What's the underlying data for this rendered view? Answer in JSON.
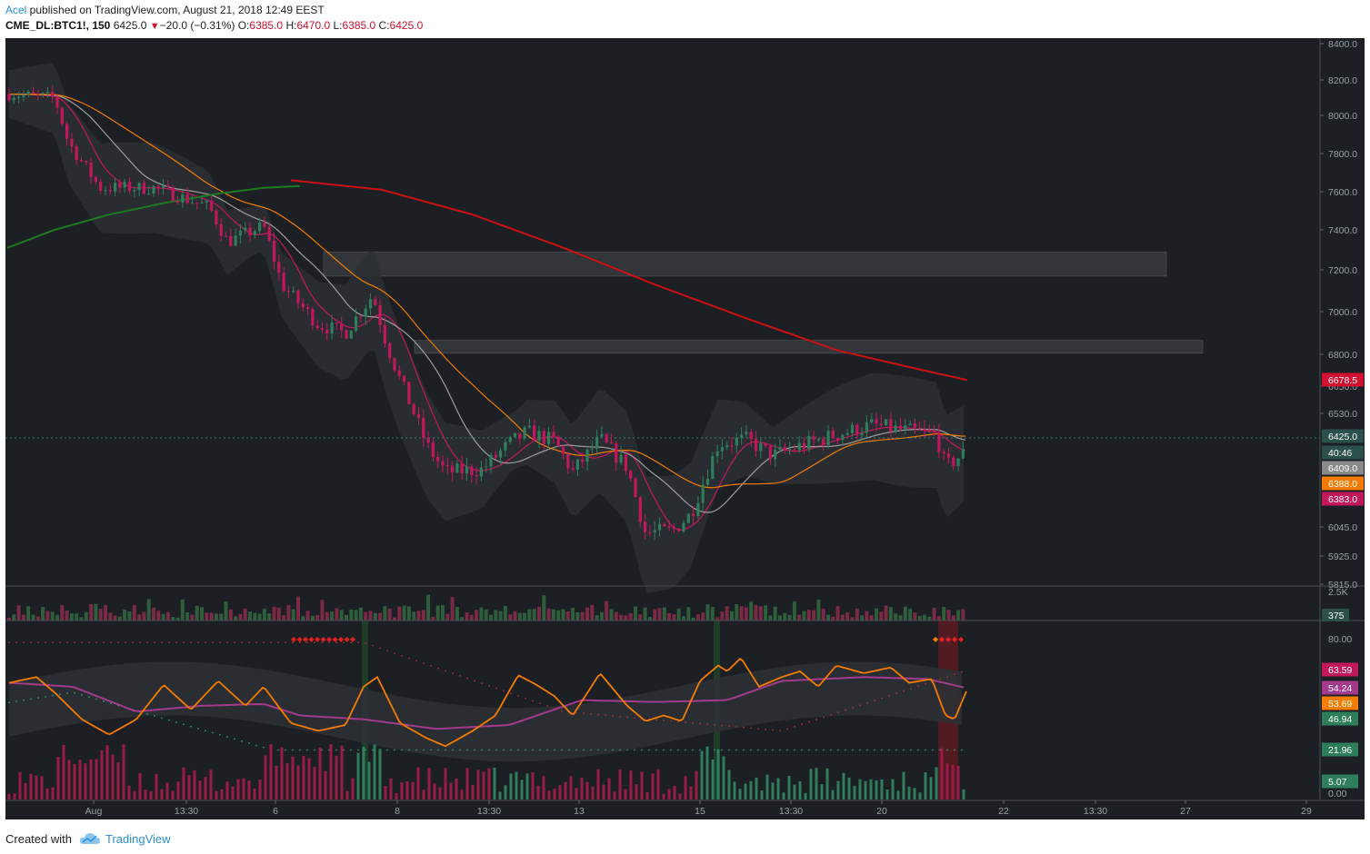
{
  "header": {
    "author": "Acel",
    "published_text": " published on TradingView.com, August 21, 2018 12:49 EEST",
    "symbol": "CME_DL:BTC1!, 150",
    "last": "6425.0",
    "change": "−20.0 (−0.31%)",
    "o_label": "O:",
    "o_value": "6385.0",
    "h_label": "H:",
    "h_value": "6470.0",
    "l_label": "L:",
    "l_value": "6385.0",
    "c_label": "C:",
    "c_value": "6425.0"
  },
  "footer": {
    "created_with": "Created with",
    "brand": "TradingView"
  },
  "colors": {
    "background": "#1c1f24",
    "bull": "#2e7d5b",
    "bear": "#c2185b",
    "ma_red": "#cc1111",
    "ma_green": "#1e7a1e",
    "ma_orange": "#f57c00",
    "ma_gray": "#9e9e9e",
    "ma_pink": "#c2185b",
    "rsi": "#f57c00",
    "rsi_signal": "#a33a8c"
  },
  "chart_data": {
    "type": "candlestick",
    "price_axis": {
      "ticks": [
        "8400.0",
        "8200.0",
        "8000.0",
        "7800.0",
        "7600.0",
        "7400.0",
        "7200.0",
        "7000.0",
        "6800.0",
        "6650.0",
        "6530.0",
        "6045.0",
        "5925.0",
        "5815.0"
      ],
      "markers": [
        {
          "label": "6678.5",
          "color": "#d0102e",
          "value": 6678.5
        },
        {
          "label": "6425.0",
          "color": "#2b4f4a",
          "value": 6425
        },
        {
          "label": "40:46",
          "color": "#2b4f4a",
          "value": 6395
        },
        {
          "label": "6409.0",
          "color": "#8a8a8a",
          "value": 6362
        },
        {
          "label": "6388.0",
          "color": "#f57c00",
          "value": 6330
        },
        {
          "label": "6383.0",
          "color": "#c2185b",
          "value": 6298
        }
      ]
    },
    "time_axis": [
      "Aug",
      "13:30",
      "6",
      "8",
      "13:30",
      "13",
      "15",
      "13:30",
      "20",
      "22",
      "13:30",
      "27",
      "29"
    ],
    "resistance_zones": [
      {
        "from_x": 0,
        "to_x": 0,
        "low": 7170,
        "high": 7290
      },
      {
        "from_x": 0,
        "to_x": 0,
        "low": 6805,
        "high": 6865
      }
    ],
    "volume_axis": [
      "2.5K",
      "375"
    ],
    "oscillator_axis": {
      "ticks": [
        "80.00",
        "0.00"
      ],
      "markers": [
        {
          "label": "63.59",
          "color": "#c2185b"
        },
        {
          "label": "54.24",
          "color": "#a33a8c"
        },
        {
          "label": "53.69",
          "color": "#f57c00"
        },
        {
          "label": "46.94",
          "color": "#2e7d5b"
        },
        {
          "label": "21.96",
          "color": "#2e7d5b"
        },
        {
          "label": "5.07",
          "color": "#2e7d5b"
        }
      ]
    },
    "last_price": 6425.0
  }
}
